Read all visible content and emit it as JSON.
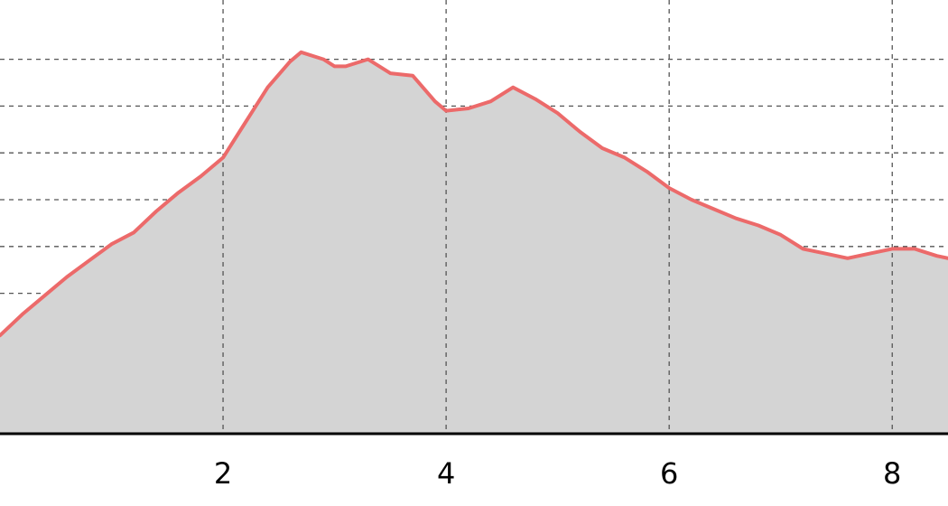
{
  "chart_data": {
    "type": "area",
    "title": "",
    "xlabel": "",
    "ylabel": "",
    "xlim": [
      0.0,
      8.5
    ],
    "ylim": [
      0,
      8.2
    ],
    "x_ticks": [
      2,
      4,
      6,
      8
    ],
    "x_tick_labels": [
      "2",
      "4",
      "6",
      "8"
    ],
    "y_gridlines": [
      1,
      2,
      3,
      4,
      5,
      6,
      7,
      8
    ],
    "grid": "dashed",
    "legend": "none",
    "colors": {
      "line": "#ec6a6a",
      "fill": "#d4d4d4",
      "grid": "#555555",
      "axis": "#000000"
    },
    "series": [
      {
        "x": [
          0.0,
          0.2,
          0.4,
          0.6,
          0.8,
          1.0,
          1.2,
          1.4,
          1.6,
          1.8,
          2.0,
          2.2,
          2.4,
          2.6,
          2.7,
          2.9,
          3.0,
          3.1,
          3.3,
          3.5,
          3.7,
          3.9,
          4.0,
          4.2,
          4.4,
          4.6,
          4.8,
          5.0,
          5.2,
          5.4,
          5.6,
          5.8,
          6.0,
          6.2,
          6.4,
          6.6,
          6.8,
          7.0,
          7.2,
          7.4,
          7.6,
          7.8,
          8.0,
          8.2,
          8.4,
          8.5
        ],
        "values": [
          2.1,
          2.55,
          2.95,
          3.35,
          3.7,
          4.05,
          4.3,
          4.75,
          5.15,
          5.5,
          5.9,
          6.65,
          7.4,
          7.95,
          8.15,
          8.0,
          7.85,
          7.85,
          8.0,
          7.7,
          7.65,
          7.1,
          6.9,
          6.95,
          7.1,
          7.4,
          7.15,
          6.85,
          6.45,
          6.1,
          5.9,
          5.6,
          5.25,
          5.0,
          4.8,
          4.6,
          4.45,
          4.25,
          3.95,
          3.85,
          3.75,
          3.85,
          3.95,
          3.95,
          3.8,
          3.75
        ]
      }
    ]
  }
}
